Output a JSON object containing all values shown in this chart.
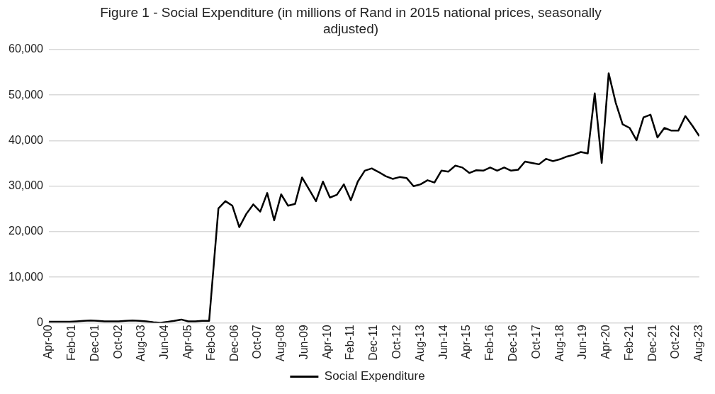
{
  "chart_data": {
    "type": "line",
    "title": "Figure 1 - Social Expenditure  (in millions of Rand in 2015 national prices, seasonally adjusted)",
    "x": [
      "2000-04",
      "2000-07",
      "2000-10",
      "2001-01",
      "2001-04",
      "2001-07",
      "2001-10",
      "2002-01",
      "2002-04",
      "2002-07",
      "2002-10",
      "2003-01",
      "2003-04",
      "2003-07",
      "2003-10",
      "2004-01",
      "2004-04",
      "2004-07",
      "2004-10",
      "2005-01",
      "2005-04",
      "2005-07",
      "2005-10",
      "2006-01",
      "2006-05",
      "2006-08",
      "2006-11",
      "2007-02",
      "2007-05",
      "2007-08",
      "2007-11",
      "2008-02",
      "2008-05",
      "2008-08",
      "2008-11",
      "2009-02",
      "2009-05",
      "2009-08",
      "2009-11",
      "2010-02",
      "2010-05",
      "2010-08",
      "2010-11",
      "2011-02",
      "2011-05",
      "2011-08",
      "2011-11",
      "2012-02",
      "2012-05",
      "2012-08",
      "2012-11",
      "2013-02",
      "2013-05",
      "2013-08",
      "2013-11",
      "2014-02",
      "2014-05",
      "2014-08",
      "2014-11",
      "2015-02",
      "2015-05",
      "2015-08",
      "2015-11",
      "2016-02",
      "2016-05",
      "2016-08",
      "2016-11",
      "2017-02",
      "2017-05",
      "2017-08",
      "2017-11",
      "2018-02",
      "2018-05",
      "2018-08",
      "2018-11",
      "2019-02",
      "2019-05",
      "2019-08",
      "2019-11",
      "2020-02",
      "2020-05",
      "2020-08",
      "2020-11",
      "2021-02",
      "2021-05",
      "2021-08",
      "2021-11",
      "2022-02",
      "2022-05",
      "2022-08",
      "2022-11",
      "2023-02",
      "2023-05",
      "2023-08"
    ],
    "series": [
      {
        "name": "Social Expenditure",
        "color": "#000000",
        "values": [
          200,
          200,
          200,
          200,
          300,
          400,
          500,
          400,
          300,
          300,
          300,
          400,
          500,
          400,
          300,
          100,
          0,
          200,
          400,
          700,
          300,
          300,
          400,
          400,
          25100,
          26700,
          25700,
          21000,
          23900,
          26000,
          24400,
          28500,
          22500,
          28200,
          25700,
          26100,
          31900,
          29300,
          26700,
          31000,
          27500,
          28100,
          30400,
          26900,
          31000,
          33400,
          33900,
          33100,
          32200,
          31600,
          32000,
          31800,
          30000,
          30400,
          31300,
          30800,
          33400,
          33200,
          34500,
          34100,
          32900,
          33500,
          33400,
          34100,
          33400,
          34100,
          33400,
          33600,
          35400,
          35100,
          34800,
          36000,
          35500,
          35900,
          36500,
          36900,
          37500,
          37200,
          50400,
          35100,
          54800,
          48400,
          43600,
          42800,
          40100,
          45100,
          45700,
          40700,
          42800,
          42200,
          42200,
          45400,
          43300,
          41000
        ]
      }
    ],
    "xlim": [
      "2000-04",
      "2023-08"
    ],
    "xticks": [
      {
        "value": "2000-04",
        "label": "Apr-00"
      },
      {
        "value": "2001-02",
        "label": "Feb-01"
      },
      {
        "value": "2001-12",
        "label": "Dec-01"
      },
      {
        "value": "2002-10",
        "label": "Oct-02"
      },
      {
        "value": "2003-08",
        "label": "Aug-03"
      },
      {
        "value": "2004-06",
        "label": "Jun-04"
      },
      {
        "value": "2005-04",
        "label": "Apr-05"
      },
      {
        "value": "2006-02",
        "label": "Feb-06"
      },
      {
        "value": "2006-12",
        "label": "Dec-06"
      },
      {
        "value": "2007-10",
        "label": "Oct-07"
      },
      {
        "value": "2008-08",
        "label": "Aug-08"
      },
      {
        "value": "2009-06",
        "label": "Jun-09"
      },
      {
        "value": "2010-04",
        "label": "Apr-10"
      },
      {
        "value": "2011-02",
        "label": "Feb-11"
      },
      {
        "value": "2011-12",
        "label": "Dec-11"
      },
      {
        "value": "2012-10",
        "label": "Oct-12"
      },
      {
        "value": "2013-08",
        "label": "Aug-13"
      },
      {
        "value": "2014-06",
        "label": "Jun-14"
      },
      {
        "value": "2015-04",
        "label": "Apr-15"
      },
      {
        "value": "2016-02",
        "label": "Feb-16"
      },
      {
        "value": "2016-12",
        "label": "Dec-16"
      },
      {
        "value": "2017-10",
        "label": "Oct-17"
      },
      {
        "value": "2018-08",
        "label": "Aug-18"
      },
      {
        "value": "2019-06",
        "label": "Jun-19"
      },
      {
        "value": "2020-04",
        "label": "Apr-20"
      },
      {
        "value": "2021-02",
        "label": "Feb-21"
      },
      {
        "value": "2021-12",
        "label": "Dec-21"
      },
      {
        "value": "2022-10",
        "label": "Oct-22"
      },
      {
        "value": "2023-08",
        "label": "Aug-23"
      }
    ],
    "ylim": [
      0,
      60000
    ],
    "yticks": [
      0,
      {
        "value": 10000,
        "label": "10,000"
      },
      {
        "value": 20000,
        "label": "20,000"
      },
      {
        "value": 30000,
        "label": "30,000"
      },
      {
        "value": 40000,
        "label": "40,000"
      },
      {
        "value": 50000,
        "label": "50,000"
      },
      {
        "value": 60000,
        "label": "60,000"
      }
    ],
    "grid": "y",
    "legend": "bottom",
    "marker": "none",
    "line_style": "solid"
  }
}
